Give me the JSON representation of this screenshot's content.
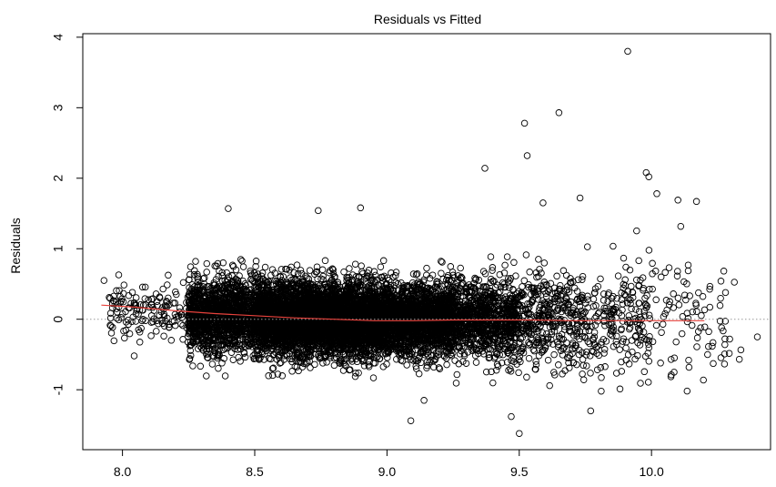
{
  "chart_data": {
    "type": "scatter",
    "title": "Residuals vs Fitted",
    "xlabel": "",
    "ylabel": "Residuals",
    "xlim": [
      7.85,
      10.45
    ],
    "ylim": [
      -1.85,
      4.05
    ],
    "x_ticks": [
      8.0,
      8.5,
      9.0,
      9.5,
      10.0
    ],
    "x_tick_labels": [
      "8.0",
      "8.5",
      "9.0",
      "9.5",
      "10.0"
    ],
    "y_ticks": [
      -1,
      0,
      1,
      2,
      3,
      4
    ],
    "y_tick_labels": [
      "-1",
      "0",
      "1",
      "2",
      "3",
      "4"
    ],
    "grid": false,
    "reference_line": {
      "y": 0,
      "style": "dotted",
      "color": "#999999"
    },
    "smoother": {
      "color": "#e8423c",
      "x": [
        7.92,
        8.05,
        8.2,
        8.35,
        8.5,
        8.65,
        8.8,
        8.95,
        9.1,
        9.25,
        9.4,
        9.55,
        9.7,
        9.85,
        10.0,
        10.2
      ],
      "y": [
        0.2,
        0.17,
        0.12,
        0.08,
        0.05,
        0.02,
        0.0,
        -0.02,
        -0.02,
        -0.01,
        -0.01,
        -0.01,
        -0.02,
        -0.02,
        -0.02,
        -0.02
      ]
    },
    "series": [
      {
        "marker": "open-circle",
        "color": "#000000",
        "notable_points": [
          {
            "x": 9.91,
            "y": 3.8
          },
          {
            "x": 9.65,
            "y": 2.93
          },
          {
            "x": 9.52,
            "y": 2.78
          },
          {
            "x": 9.53,
            "y": 2.32
          },
          {
            "x": 9.37,
            "y": 2.14
          },
          {
            "x": 9.98,
            "y": 2.08
          },
          {
            "x": 9.99,
            "y": 2.02
          },
          {
            "x": 10.02,
            "y": 1.78
          },
          {
            "x": 10.1,
            "y": 1.69
          },
          {
            "x": 10.17,
            "y": 1.67
          },
          {
            "x": 9.59,
            "y": 1.65
          },
          {
            "x": 9.73,
            "y": 1.72
          },
          {
            "x": 8.4,
            "y": 1.57
          },
          {
            "x": 8.74,
            "y": 1.54
          },
          {
            "x": 8.9,
            "y": 1.58
          },
          {
            "x": 10.4,
            "y": -0.25
          },
          {
            "x": 7.93,
            "y": 0.55
          },
          {
            "x": 9.5,
            "y": -1.62
          },
          {
            "x": 9.47,
            "y": -1.38
          },
          {
            "x": 9.09,
            "y": -1.44
          },
          {
            "x": 9.77,
            "y": -1.3
          },
          {
            "x": 9.14,
            "y": -1.15
          },
          {
            "x": 9.81,
            "y": -1.02
          }
        ],
        "cloud": [
          {
            "x_min": 7.95,
            "x_max": 8.25,
            "count": 150,
            "mean": 0.12,
            "sd": 0.2
          },
          {
            "x_min": 8.25,
            "x_max": 8.5,
            "count": 1300,
            "mean": 0.06,
            "sd": 0.27
          },
          {
            "x_min": 8.5,
            "x_max": 8.75,
            "count": 2200,
            "mean": 0.03,
            "sd": 0.26
          },
          {
            "x_min": 8.75,
            "x_max": 9.0,
            "count": 2300,
            "mean": 0.0,
            "sd": 0.26
          },
          {
            "x_min": 9.0,
            "x_max": 9.25,
            "count": 1700,
            "mean": -0.01,
            "sd": 0.26
          },
          {
            "x_min": 9.25,
            "x_max": 9.5,
            "count": 900,
            "mean": -0.01,
            "sd": 0.28
          },
          {
            "x_min": 9.5,
            "x_max": 9.75,
            "count": 380,
            "mean": -0.01,
            "sd": 0.34
          },
          {
            "x_min": 9.75,
            "x_max": 10.0,
            "count": 210,
            "mean": -0.02,
            "sd": 0.4
          },
          {
            "x_min": 10.0,
            "x_max": 10.35,
            "count": 90,
            "mean": 0.0,
            "sd": 0.45
          }
        ]
      }
    ]
  }
}
